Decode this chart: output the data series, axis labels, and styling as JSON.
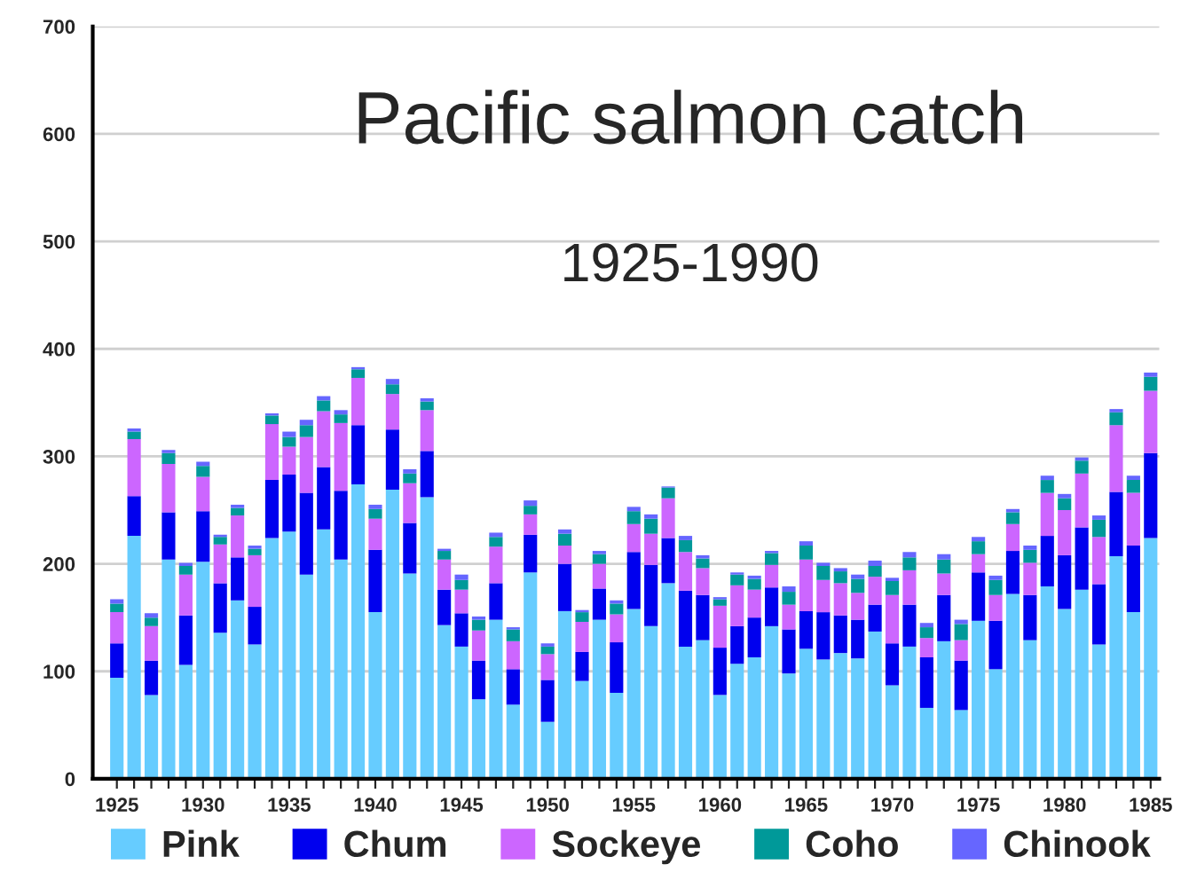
{
  "chart_data": {
    "type": "bar",
    "stacked": true,
    "title": "Pacific salmon catch",
    "subtitle": "1925-1990",
    "categories": [
      "1925",
      null,
      null,
      null,
      null,
      "1930",
      null,
      null,
      null,
      null,
      "1935",
      null,
      null,
      null,
      null,
      "1940",
      null,
      null,
      null,
      null,
      "1945",
      null,
      null,
      null,
      null,
      "1950",
      null,
      null,
      null,
      null,
      "1955",
      null,
      null,
      null,
      null,
      "1960",
      null,
      null,
      null,
      null,
      "1965",
      null,
      null,
      null,
      null,
      "1970",
      null,
      null,
      null,
      null,
      "1975",
      null,
      null,
      null,
      null,
      "1980",
      null,
      null,
      null,
      null,
      "1985"
    ],
    "series": [
      {
        "name": "Pink",
        "color": "#66ccff",
        "values": [
          94,
          226,
          78,
          204,
          106,
          202,
          136,
          166,
          125,
          224,
          230,
          190,
          232,
          204,
          274,
          155,
          269,
          191,
          262,
          143,
          123,
          74,
          148,
          69,
          192,
          53,
          156,
          91,
          148,
          80,
          158,
          142,
          182,
          123,
          129,
          78,
          107,
          113,
          142,
          98,
          121,
          111,
          117,
          112,
          137,
          87,
          123,
          66,
          128,
          64,
          147,
          102,
          172,
          129,
          179,
          158,
          176,
          125,
          207,
          155,
          224
        ]
      },
      {
        "name": "Chum",
        "color": "#0000ee",
        "values": [
          32,
          37,
          32,
          44,
          46,
          47,
          46,
          40,
          35,
          54,
          53,
          76,
          58,
          64,
          55,
          58,
          56,
          47,
          43,
          33,
          31,
          36,
          34,
          33,
          35,
          39,
          44,
          27,
          29,
          47,
          53,
          57,
          42,
          52,
          42,
          44,
          35,
          37,
          36,
          41,
          35,
          44,
          35,
          36,
          25,
          39,
          39,
          47,
          43,
          46,
          45,
          45,
          40,
          42,
          47,
          50,
          58,
          56,
          60,
          62,
          79
        ]
      },
      {
        "name": "Sockeye",
        "color": "#cc66ff",
        "values": [
          29,
          53,
          32,
          45,
          38,
          32,
          36,
          39,
          48,
          52,
          26,
          52,
          52,
          63,
          44,
          29,
          33,
          37,
          38,
          28,
          22,
          28,
          34,
          26,
          19,
          24,
          17,
          28,
          23,
          26,
          26,
          29,
          37,
          36,
          25,
          39,
          38,
          26,
          21,
          23,
          48,
          30,
          30,
          25,
          26,
          45,
          32,
          18,
          20,
          19,
          17,
          24,
          25,
          30,
          40,
          42,
          50,
          44,
          62,
          49,
          58
        ]
      },
      {
        "name": "Coho",
        "color": "#009999",
        "values": [
          8,
          7,
          8,
          10,
          8,
          10,
          7,
          7,
          6,
          8,
          9,
          11,
          10,
          8,
          8,
          9,
          9,
          9,
          8,
          8,
          9,
          10,
          9,
          11,
          8,
          7,
          11,
          9,
          9,
          10,
          12,
          14,
          10,
          11,
          9,
          6,
          10,
          10,
          11,
          12,
          13,
          13,
          11,
          13,
          10,
          13,
          12,
          10,
          13,
          15,
          12,
          14,
          11,
          12,
          12,
          11,
          12,
          16,
          12,
          12,
          13
        ]
      },
      {
        "name": "Chinook",
        "color": "#6666ff",
        "values": [
          4,
          3,
          4,
          3,
          3,
          4,
          2,
          3,
          3,
          2,
          5,
          5,
          4,
          4,
          2,
          4,
          5,
          4,
          3,
          2,
          5,
          3,
          4,
          2,
          5,
          3,
          4,
          2,
          3,
          3,
          4,
          4,
          1,
          4,
          3,
          2,
          2,
          3,
          2,
          5,
          4,
          3,
          3,
          4,
          5,
          3,
          5,
          4,
          5,
          4,
          4,
          4,
          3,
          4,
          4,
          4,
          3,
          4,
          3,
          4,
          4
        ]
      }
    ],
    "ylim": [
      0,
      700
    ],
    "yticks": [
      0,
      100,
      200,
      300,
      400,
      500,
      600,
      700
    ],
    "grid": "y",
    "legend": "bottom"
  }
}
